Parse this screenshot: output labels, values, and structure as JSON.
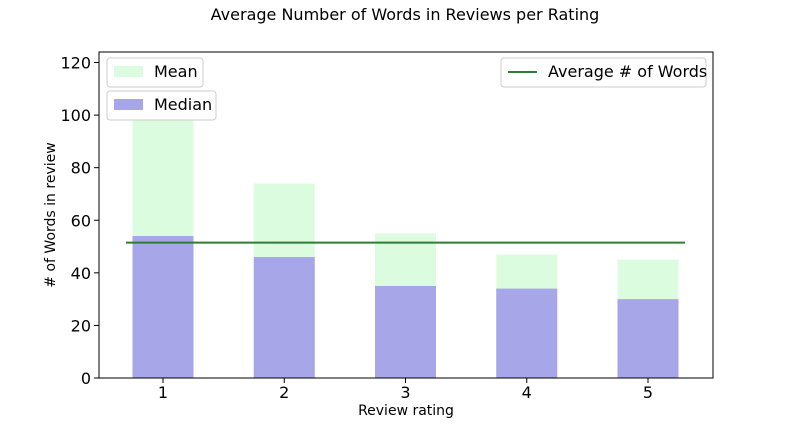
{
  "chart_data": {
    "type": "bar",
    "title": "Average Number of Words in Reviews per Rating",
    "xlabel": "Review rating",
    "ylabel": "# of Words in review",
    "categories": [
      "1",
      "2",
      "3",
      "4",
      "5"
    ],
    "series": [
      {
        "name": "Mean",
        "values": [
          99,
          74,
          55,
          47,
          45
        ],
        "color": "#dcfce0"
      },
      {
        "name": "Median",
        "values": [
          54,
          46,
          35,
          34,
          30
        ],
        "color": "#a6a6e8"
      }
    ],
    "reference_line": {
      "name": "Average # of Words",
      "value": 51.5,
      "color": "#2e7d32"
    },
    "ylim": [
      0,
      124
    ],
    "yticks": [
      0,
      20,
      40,
      60,
      80,
      100,
      120
    ],
    "grid": false,
    "legend": {
      "mean": "upper-left",
      "median": "upper-left",
      "average": "upper-right"
    }
  }
}
